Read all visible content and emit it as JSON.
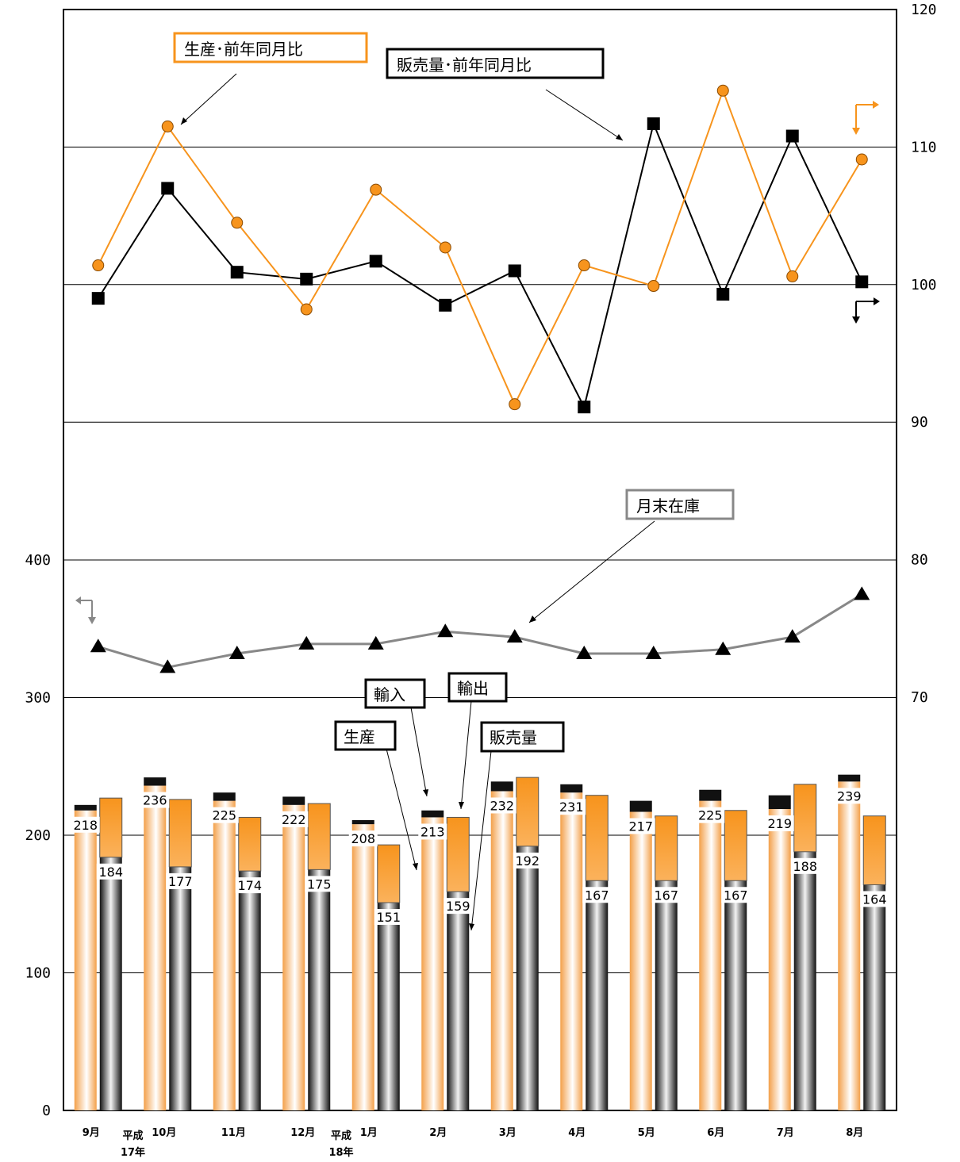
{
  "chart_data": {
    "type": "bar",
    "categories": [
      "9月",
      "10月",
      "11月",
      "12月",
      "1月",
      "2月",
      "3月",
      "4月",
      "5月",
      "6月",
      "7月",
      "8月"
    ],
    "era_labels": [
      {
        "line1": "平成",
        "line2": "17年"
      },
      {
        "line1": "平成",
        "line2": "18年"
      }
    ],
    "left_axis": {
      "ylim": [
        0,
        400
      ],
      "ticks": [
        "0",
        "100",
        "200",
        "300",
        "400"
      ]
    },
    "right_axis": {
      "ylim": [
        70,
        120
      ],
      "ticks": [
        "70",
        "80",
        "90",
        "100",
        "110",
        "120"
      ]
    },
    "series": [
      {
        "name": "生産",
        "values": [
          218,
          236,
          225,
          222,
          208,
          213,
          232,
          231,
          217,
          225,
          219,
          239
        ],
        "color": "#f4a040"
      },
      {
        "name": "輸入",
        "values": [
          4,
          6,
          6,
          6,
          3,
          5,
          7,
          6,
          8,
          8,
          10,
          5
        ],
        "color": "#111111"
      },
      {
        "name": "販売量",
        "values": [
          184,
          177,
          174,
          175,
          151,
          159,
          192,
          167,
          167,
          167,
          188,
          164
        ],
        "color": "#333333"
      },
      {
        "name": "輸出",
        "values": [
          43,
          49,
          39,
          48,
          42,
          54,
          50,
          62,
          47,
          51,
          49,
          50
        ],
        "color": "#f7941d"
      },
      {
        "name": "月末在庫",
        "values": [
          337,
          322,
          332,
          339,
          339,
          348,
          344,
          332,
          332,
          335,
          344,
          375
        ],
        "color": "#888888"
      },
      {
        "name": "生産・前年同月比",
        "values": [
          101.4,
          111.5,
          104.5,
          98.2,
          106.9,
          102.7,
          91.3,
          101.4,
          99.9,
          114.1,
          100.6,
          109.1
        ],
        "color": "#f7941d"
      },
      {
        "name": "販売量・前年同月比",
        "values": [
          99.0,
          107.0,
          100.9,
          100.4,
          101.7,
          98.5,
          101.0,
          91.1,
          111.7,
          99.3,
          110.8,
          100.2
        ],
        "color": "#111111"
      }
    ]
  },
  "annotations": {
    "prod_ratio": "生産･前年同月比",
    "sales_ratio": "販売量･前年同月比",
    "inventory": "月末在庫",
    "import": "輸入",
    "export": "輸出",
    "production": "生産",
    "sales": "販売量"
  }
}
